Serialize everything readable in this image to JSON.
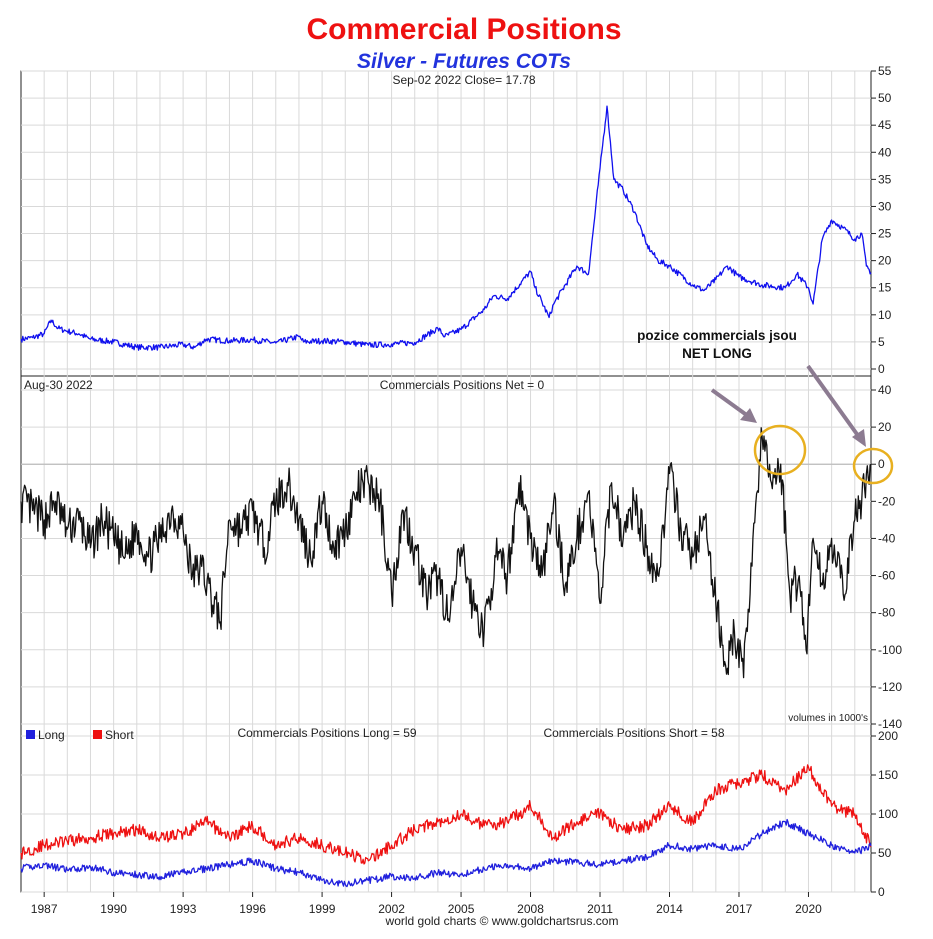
{
  "header": {
    "title": "Commercial Positions",
    "subtitle": "Silver - Futures COTs"
  },
  "colors": {
    "title": "#ee1111",
    "subtitle": "#2233dd",
    "price_line": "#1010ee",
    "net_line": "#111111",
    "long_line": "#2020dd",
    "short_line": "#ee1111",
    "highlight_circle": "#e8b020",
    "arrow": "#8c7b91",
    "grid": "#d9d9d9"
  },
  "annotation": {
    "line1": "pozice commercials jsou",
    "line2": "NET LONG"
  },
  "footer": {
    "credit": "world gold charts © www.goldchartsrus.com"
  },
  "chart_data": [
    {
      "type": "line",
      "panel": "price",
      "header": "Sep-02  2022   Close= 17.78",
      "x_range": [
        1986.0,
        2022.7
      ],
      "ylim": [
        -1,
        55
      ],
      "yticks": [
        0,
        5,
        10,
        15,
        20,
        25,
        30,
        35,
        40,
        45,
        50,
        55
      ],
      "grid": true,
      "series": [
        {
          "x": [
            1986.0,
            1986.5,
            1987.0,
            1987.3,
            1987.6,
            1988.0,
            1988.5,
            1989.0,
            1990.0,
            1991.0,
            1992.0,
            1993.0,
            1993.5,
            1994.0,
            1995.0,
            1996.0,
            1997.0,
            1998.0,
            1998.2,
            1999.0,
            2000.0,
            2001.0,
            2002.0,
            2003.0,
            2004.0,
            2004.3,
            2005.0,
            2006.0,
            2006.4,
            2007.0,
            2008.0,
            2008.2,
            2008.8,
            2009.0,
            2010.0,
            2010.5,
            2011.0,
            2011.3,
            2011.6,
            2012.0,
            2012.5,
            2013.0,
            2013.5,
            2014.0,
            2015.0,
            2015.5,
            2016.0,
            2016.5,
            2017.0,
            2018.0,
            2019.0,
            2019.5,
            2020.0,
            2020.2,
            2020.6,
            2021.0,
            2021.5,
            2022.0,
            2022.3,
            2022.5,
            2022.7
          ],
          "y": [
            5.5,
            5.8,
            6.5,
            9.0,
            7.5,
            7.0,
            6.5,
            5.5,
            5.0,
            4.0,
            4.0,
            4.5,
            4.0,
            5.5,
            5.2,
            5.4,
            4.8,
            6.0,
            5.0,
            5.2,
            5.0,
            4.4,
            4.6,
            4.9,
            7.5,
            6.0,
            7.3,
            11.0,
            13.5,
            13.0,
            18.0,
            15.0,
            9.5,
            12.0,
            19.0,
            17.5,
            37.0,
            48.5,
            35.0,
            33.0,
            29.0,
            23.0,
            20.0,
            19.0,
            15.5,
            14.5,
            16.5,
            19.0,
            17.0,
            15.5,
            15.0,
            17.5,
            15.0,
            12.0,
            24.0,
            27.5,
            26.0,
            24.0,
            25.0,
            19.0,
            17.78
          ]
        }
      ]
    },
    {
      "type": "line",
      "panel": "net",
      "header_date": "Aug-30  2022",
      "header_value": "Commercials Positions Net = 0",
      "x_range": [
        1986.0,
        2022.7
      ],
      "ylim": [
        -140,
        40
      ],
      "yticks": [
        40,
        20,
        0,
        -20,
        -40,
        -60,
        -80,
        -100,
        -120,
        -140
      ],
      "note": "volumes in 1000's",
      "grid": true,
      "series": [
        {
          "x": [
            1986.0,
            1986.5,
            1987.0,
            1987.5,
            1988.0,
            1988.5,
            1989.0,
            1989.5,
            1990.0,
            1990.5,
            1991.0,
            1991.5,
            1992.0,
            1992.5,
            1993.0,
            1993.4,
            1993.8,
            1994.2,
            1994.6,
            1995.0,
            1995.5,
            1996.0,
            1996.5,
            1997.0,
            1997.5,
            1998.0,
            1998.5,
            1999.0,
            1999.5,
            2000.0,
            2000.5,
            2001.0,
            2001.5,
            2002.0,
            2002.5,
            2003.0,
            2003.5,
            2004.0,
            2004.5,
            2005.0,
            2005.5,
            2006.0,
            2006.5,
            2007.0,
            2007.5,
            2008.0,
            2008.5,
            2009.0,
            2009.5,
            2010.0,
            2010.5,
            2011.0,
            2011.5,
            2012.0,
            2012.5,
            2013.0,
            2013.5,
            2014.0,
            2014.5,
            2015.0,
            2015.5,
            2016.0,
            2016.5,
            2016.8,
            2017.2,
            2017.6,
            2018.0,
            2018.4,
            2018.8,
            2019.2,
            2019.6,
            2019.9,
            2020.2,
            2020.6,
            2021.0,
            2021.5,
            2022.0,
            2022.3,
            2022.5,
            2022.7
          ],
          "y": [
            -20,
            -25,
            -30,
            -20,
            -35,
            -30,
            -45,
            -30,
            -40,
            -50,
            -35,
            -50,
            -40,
            -25,
            -35,
            -60,
            -55,
            -70,
            -85,
            -30,
            -35,
            -25,
            -45,
            -20,
            -10,
            -30,
            -50,
            -20,
            -45,
            -35,
            -15,
            -10,
            -20,
            -70,
            -25,
            -45,
            -70,
            -60,
            -85,
            -45,
            -75,
            -90,
            -50,
            -60,
            -10,
            -40,
            -60,
            -20,
            -65,
            -40,
            -15,
            -75,
            -10,
            -40,
            -20,
            -45,
            -60,
            -5,
            -35,
            -50,
            -30,
            -75,
            -110,
            -90,
            -115,
            -40,
            15,
            -10,
            0,
            -70,
            -60,
            -100,
            -40,
            -65,
            -40,
            -70,
            -30,
            -20,
            -5,
            0
          ]
        }
      ]
    },
    {
      "type": "line",
      "panel": "long_short",
      "header_long": "Commercials Positions Long = 59",
      "header_short": "Commercials Positions Short = 58",
      "x_range": [
        1986.0,
        2022.7
      ],
      "ylim": [
        0,
        200
      ],
      "yticks": [
        0,
        50,
        100,
        150,
        200
      ],
      "xticks": [
        "1987",
        "1990",
        "1993",
        "1996",
        "1999",
        "2002",
        "2005",
        "2008",
        "2011",
        "2014",
        "2017",
        "2020"
      ],
      "legend_position": "top-left",
      "grid": true,
      "series": [
        {
          "name": "Long",
          "x": [
            1986.0,
            1987.0,
            1988.0,
            1989.0,
            1990.0,
            1991.0,
            1992.0,
            1993.0,
            1994.0,
            1995.0,
            1996.0,
            1997.0,
            1998.0,
            1999.0,
            2000.0,
            2001.0,
            2002.0,
            2003.0,
            2004.0,
            2005.0,
            2006.0,
            2007.0,
            2008.0,
            2009.0,
            2010.0,
            2011.0,
            2012.0,
            2013.0,
            2014.0,
            2015.0,
            2016.0,
            2017.0,
            2018.0,
            2019.0,
            2020.0,
            2021.0,
            2022.0,
            2022.7
          ],
          "y": [
            30,
            35,
            28,
            32,
            25,
            22,
            20,
            25,
            30,
            35,
            40,
            30,
            25,
            15,
            10,
            15,
            20,
            18,
            25,
            22,
            30,
            35,
            30,
            40,
            38,
            35,
            40,
            45,
            60,
            55,
            60,
            55,
            75,
            90,
            75,
            60,
            50,
            59
          ]
        },
        {
          "name": "Short",
          "x": [
            1986.0,
            1987.0,
            1988.0,
            1989.0,
            1990.0,
            1991.0,
            1992.0,
            1993.0,
            1994.0,
            1995.0,
            1996.0,
            1997.0,
            1998.0,
            1999.0,
            2000.0,
            2001.0,
            2002.0,
            2003.0,
            2004.0,
            2005.0,
            2006.0,
            2007.0,
            2008.0,
            2009.0,
            2010.0,
            2011.0,
            2012.0,
            2013.0,
            2014.0,
            2015.0,
            2016.0,
            2017.0,
            2018.0,
            2019.0,
            2020.0,
            2021.0,
            2022.0,
            2022.7
          ],
          "y": [
            50,
            60,
            65,
            70,
            75,
            80,
            70,
            75,
            90,
            70,
            85,
            60,
            70,
            60,
            50,
            40,
            60,
            80,
            90,
            100,
            85,
            90,
            110,
            70,
            90,
            100,
            80,
            85,
            110,
            90,
            130,
            140,
            150,
            130,
            160,
            110,
            100,
            58
          ]
        }
      ]
    }
  ]
}
